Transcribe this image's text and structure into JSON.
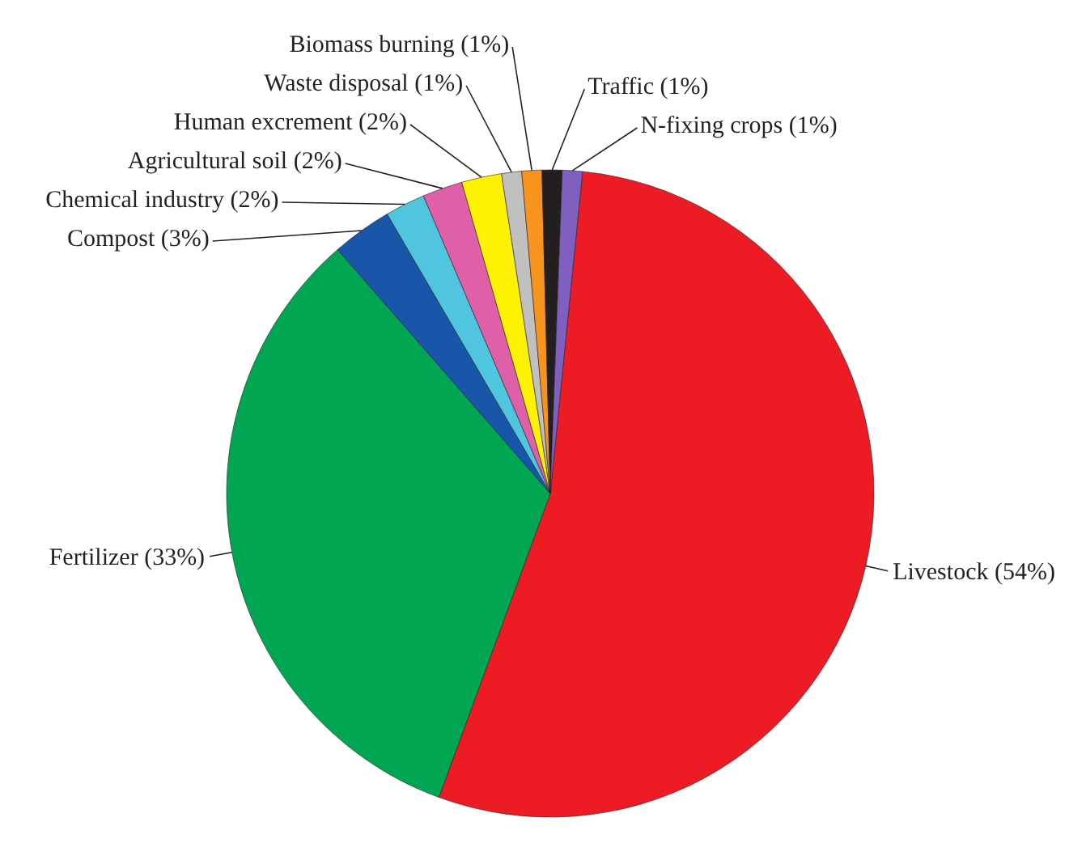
{
  "chart_data": {
    "type": "pie",
    "categories": [
      "Livestock (54%)",
      "Fertilizer (33%)",
      "Compost (3%)",
      "Chemical industry (2%)",
      "Agricultural soil (2%)",
      "Human excrement (2%)",
      "Waste disposal (1%)",
      "Biomass burning (1%)",
      "Traffic (1%)",
      "N-fixing crops (1%)"
    ],
    "values": [
      54,
      33,
      3,
      2,
      2,
      2,
      1,
      1,
      1,
      1
    ],
    "colors": [
      "#ed1c24",
      "#00a651",
      "#1756a9",
      "#4fc6de",
      "#e05fa9",
      "#fff200",
      "#c0c0c0",
      "#f7941d",
      "#231f20",
      "#7f5fbf"
    ]
  }
}
